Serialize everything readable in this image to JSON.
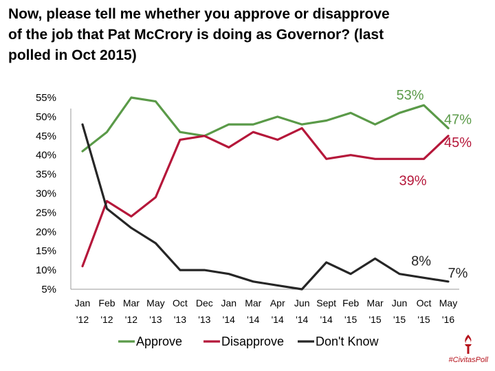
{
  "title": "Now, please tell me whether you approve or disapprove of the job that Pat McCrory is doing as Governor? (last polled in Oct 2015)",
  "brand": {
    "hashtag": "#CivitasPoll",
    "logo_icon": "torch-icon"
  },
  "colors": {
    "approve": "#5a9a48",
    "disapprove": "#b5173a",
    "dont_know": "#262626"
  },
  "chart_data": {
    "type": "line",
    "title": "Now, please tell me whether you approve or disapprove of the job that Pat McCrory is doing as Governor? (last polled in Oct 2015)",
    "categories": [
      [
        "Jan",
        "'12"
      ],
      [
        "Feb",
        "'12"
      ],
      [
        "Mar",
        "'12"
      ],
      [
        "May",
        "'13"
      ],
      [
        "Oct",
        "'13"
      ],
      [
        "Dec",
        "'13"
      ],
      [
        "Jan",
        "'14"
      ],
      [
        "Mar",
        "'14"
      ],
      [
        "Apr",
        "'14"
      ],
      [
        "Jun",
        "'14"
      ],
      [
        "Sept",
        "'14"
      ],
      [
        "Feb",
        "'15"
      ],
      [
        "Mar",
        "'15"
      ],
      [
        "Jun",
        "'15"
      ],
      [
        "Oct",
        "'15"
      ],
      [
        "May",
        "'16"
      ]
    ],
    "ylim": [
      5,
      55
    ],
    "yticks": [
      "5%",
      "10%",
      "15%",
      "20%",
      "25%",
      "30%",
      "35%",
      "40%",
      "45%",
      "50%",
      "55%"
    ],
    "grid": false,
    "legend_position": "bottom",
    "series": [
      {
        "name": "Approve",
        "color": "#5a9a48",
        "values": [
          41,
          46,
          55,
          54,
          46,
          45,
          48,
          48,
          50,
          48,
          49,
          51,
          48,
          51,
          53,
          47
        ]
      },
      {
        "name": "Disapprove",
        "color": "#b5173a",
        "values": [
          11,
          28,
          24,
          29,
          44,
          45,
          42,
          46,
          44,
          47,
          39,
          40,
          39,
          39,
          39,
          45
        ]
      },
      {
        "name": "Don't Know",
        "color": "#262626",
        "values": [
          48,
          26,
          21,
          17,
          10,
          10,
          9,
          7,
          6,
          5,
          12,
          9,
          13,
          9,
          8,
          7
        ]
      }
    ],
    "annotations": [
      {
        "text": "53%",
        "series": 0,
        "index": 14
      },
      {
        "text": "47%",
        "series": 0,
        "index": 15
      },
      {
        "text": "39%",
        "series": 1,
        "index": 14
      },
      {
        "text": "45%",
        "series": 1,
        "index": 15
      },
      {
        "text": "8%",
        "series": 2,
        "index": 14
      },
      {
        "text": "7%",
        "series": 2,
        "index": 15
      }
    ]
  }
}
